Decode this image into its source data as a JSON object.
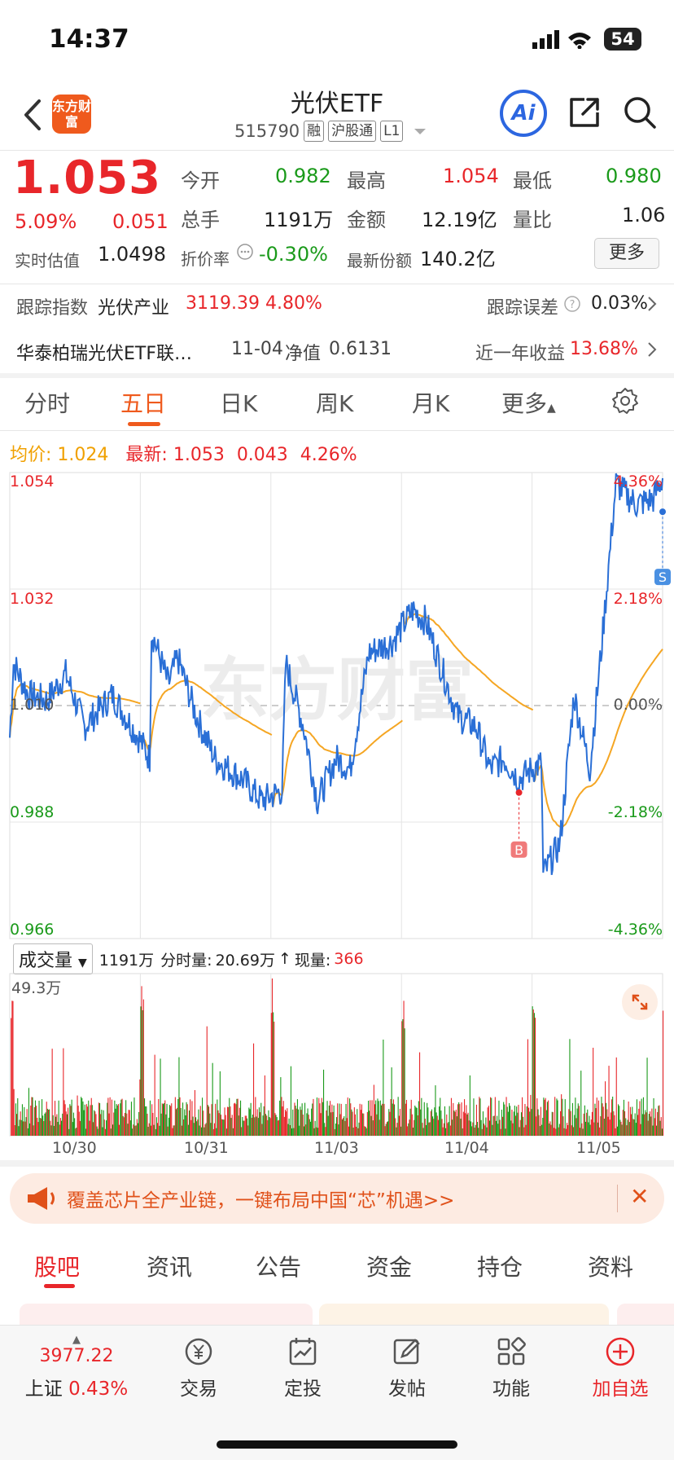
{
  "status_bar": {
    "time": "14:37",
    "battery": "54"
  },
  "header": {
    "logo_text": "东方财富",
    "title": "光伏ETF",
    "code": "515790",
    "tags": [
      "融",
      "沪股通",
      "L1"
    ],
    "ai_label": "Ai"
  },
  "quote": {
    "price": "1.053",
    "change_pct": "5.09%",
    "change": "0.051",
    "open_label": "今开",
    "open": "0.982",
    "high_label": "最高",
    "high": "1.054",
    "low_label": "最低",
    "low": "0.980",
    "volume_label": "总手",
    "volume": "1191万",
    "amount_label": "金额",
    "amount": "12.19亿",
    "ratio_label": "量比",
    "ratio": "1.06",
    "iopv_label": "实时估值",
    "iopv": "1.0498",
    "discount_label": "折价率",
    "discount": "-0.30%",
    "shares_label": "最新份额",
    "shares": "140.2亿",
    "more": "更多"
  },
  "tracking": {
    "index_label": "跟踪指数",
    "index_name": "光伏产业",
    "index_value": "3119.39",
    "index_pct": "4.80%",
    "error_label": "跟踪误差",
    "error": "0.03%"
  },
  "fund": {
    "name": "华泰柏瑞光伏ETF联…",
    "nav_date": "11-04",
    "nav_label": "净值",
    "nav": "0.6131",
    "yield_label": "近一年收益",
    "yield": "13.68%"
  },
  "period_tabs": [
    "分时",
    "五日",
    "日K",
    "周K",
    "月K",
    "更多"
  ],
  "chart_header": {
    "avg_label": "均价:",
    "avg": "1.024",
    "latest_label": "最新:",
    "latest": "1.053",
    "latest_change": "0.043",
    "latest_pct": "4.26%"
  },
  "chart_data": {
    "type": "line",
    "title": "",
    "y_ticks": [
      "1.054",
      "1.032",
      "1.010",
      "0.988",
      "0.966"
    ],
    "y_pct_ticks": [
      "4.36%",
      "2.18%",
      "0.00%",
      "-2.18%",
      "-4.36%"
    ],
    "ylim": [
      0.966,
      1.054
    ],
    "x_ticks": [
      "10/30",
      "10/31",
      "11/03",
      "11/04",
      "11/05"
    ],
    "grid": true,
    "markers": [
      {
        "label": "B",
        "day": "11/04"
      },
      {
        "label": "S",
        "day": "11/05"
      }
    ],
    "watermark": "东方财富",
    "colors": {
      "price": "#2a6fd6",
      "avg": "#f5a623",
      "up": "#e8262a",
      "down": "#1a9a1a"
    }
  },
  "volume": {
    "selector": "成交量",
    "total": "1191万",
    "per_min_label": "分时量:",
    "per_min": "20.69万",
    "now_label": "现量:",
    "now": "366",
    "max_label": "49.3万"
  },
  "banner": {
    "text": "覆盖芯片全产业链，一键布局中国“芯”机遇>>"
  },
  "bottom_tabs": [
    "股吧",
    "资讯",
    "公告",
    "资金",
    "持仓",
    "资料"
  ],
  "bottom_nav": {
    "index_value": "3977.22",
    "index_name": "上证",
    "index_pct": "0.43%",
    "items": [
      "交易",
      "定投",
      "发帖",
      "功能",
      "加自选"
    ]
  }
}
